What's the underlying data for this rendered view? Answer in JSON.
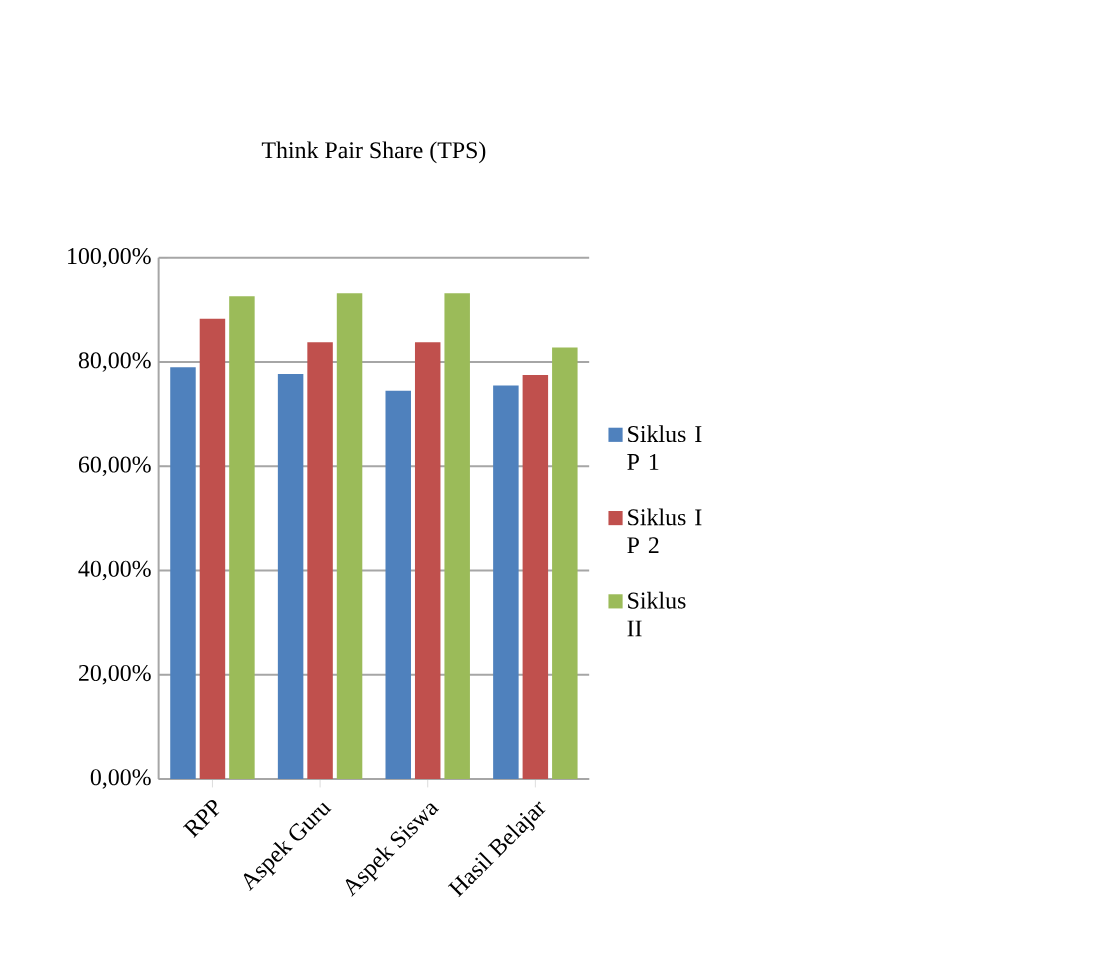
{
  "chart_data": {
    "type": "bar",
    "title": "Think Pair Share (TPS)",
    "categories": [
      "RPP",
      "Aspek Guru",
      "Aspek Siswa",
      "Hasil Belajar"
    ],
    "series": [
      {
        "name": "Siklus I P  1",
        "color": "#4f81bd",
        "values": [
          79,
          77.7,
          74.5,
          75.5
        ]
      },
      {
        "name": "Siklus I P 2",
        "color": "#c0504d",
        "values": [
          88.3,
          83.8,
          83.8,
          77.5
        ]
      },
      {
        "name": "Siklus II",
        "color": "#9bbb59",
        "values": [
          92.6,
          93.2,
          93.2,
          82.8
        ]
      }
    ],
    "ylim": [
      0,
      100
    ],
    "yticks": [
      {
        "value": 0,
        "label": "0,00%"
      },
      {
        "value": 20,
        "label": "20,00%"
      },
      {
        "value": 40,
        "label": "40,00%"
      },
      {
        "value": 60,
        "label": "60,00%"
      },
      {
        "value": 80,
        "label": "80,00%"
      },
      {
        "value": 100,
        "label": "100,00%"
      }
    ],
    "grid": "y",
    "legend": "right"
  }
}
